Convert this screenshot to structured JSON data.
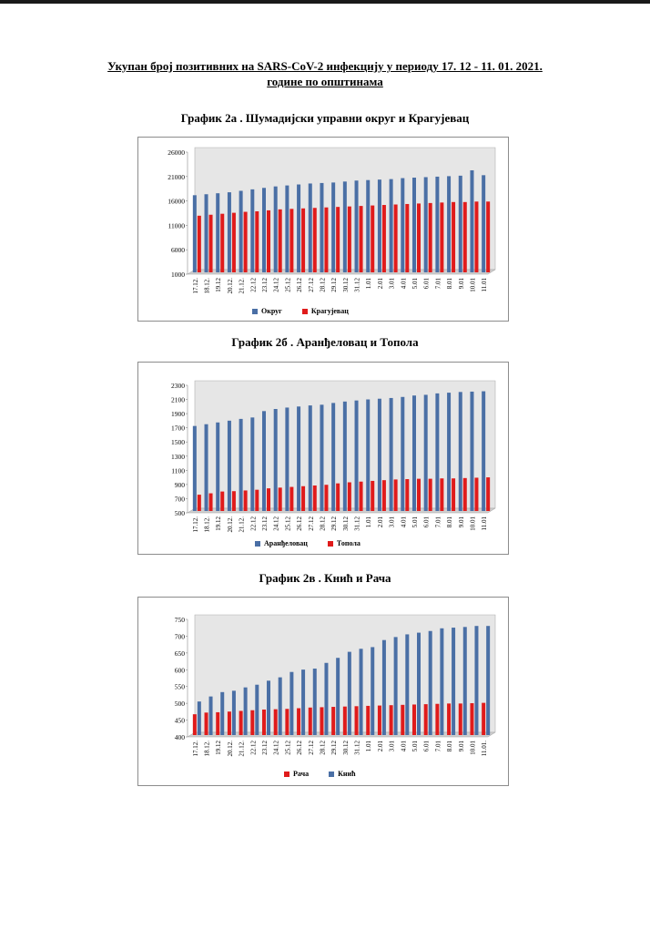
{
  "page": {
    "title_line1": "Укупан број позитивних на SARS-CoV-2 инфекцију у периоду 17. 12 - 11. 01. 2021.",
    "title_line2": "године по општинама"
  },
  "colors": {
    "blue": "#4a6fa5",
    "red": "#e01b1b",
    "plot_bg": "#e6e6e6"
  },
  "chart_data": [
    {
      "type": "bar",
      "title": "График 2а . Шумадијски управни округ и Крагујевац",
      "categories": [
        "17.12.",
        "18.12.",
        "19.12",
        "20.12.",
        "21.12.",
        "22.12",
        "23.12",
        "24.12",
        "25.12",
        "26.12",
        "27.12",
        "28.12",
        "29.12",
        "30.12",
        "31.12",
        "1.01",
        "2.01",
        "3.01",
        "4.01",
        "5.01",
        "6.01",
        "7.01",
        "8.01",
        "9.01",
        "10.01",
        "11.01"
      ],
      "yticks": [
        "26000",
        "21000",
        "16000",
        "11000",
        "6000",
        "1000"
      ],
      "ylim": [
        1000,
        26000
      ],
      "series": [
        {
          "name": "Округ",
          "color": "blue",
          "values": [
            16800,
            17000,
            17200,
            17400,
            17700,
            18000,
            18300,
            18600,
            18800,
            19000,
            19200,
            19300,
            19400,
            19600,
            19800,
            19900,
            20000,
            20100,
            20300,
            20400,
            20500,
            20600,
            20700,
            20800,
            21900,
            20900
          ]
        },
        {
          "name": "Крагујевац",
          "color": "red",
          "values": [
            12600,
            12800,
            13000,
            13200,
            13400,
            13500,
            13700,
            13900,
            14000,
            14100,
            14200,
            14300,
            14400,
            14500,
            14600,
            14700,
            14800,
            14900,
            15000,
            15100,
            15200,
            15300,
            15400,
            15400,
            15500,
            15500
          ]
        }
      ]
    },
    {
      "type": "bar",
      "title": "График 2б . Аранђеловац и Топола",
      "categories": [
        "17.12.",
        "18.12.",
        "19.12",
        "20.12.",
        "21.12.",
        "22.12",
        "23.12",
        "24.12",
        "25.12",
        "26.12",
        "27.12",
        "28.12",
        "29.12",
        "30.12",
        "31.12",
        "1.01",
        "2.01",
        "3.01",
        "4.01",
        "5.01",
        "6.01",
        "7.01",
        "8.01",
        "9.01",
        "10.01",
        "11.01"
      ],
      "yticks": [
        "2300",
        "2100",
        "1900",
        "1700",
        "1500",
        "1300",
        "1100",
        "900",
        "700",
        "500"
      ],
      "ylim": [
        500,
        2300
      ],
      "series": [
        {
          "name": "Аранђеловац",
          "color": "blue",
          "values": [
            1700,
            1725,
            1750,
            1775,
            1800,
            1820,
            1910,
            1940,
            1960,
            1975,
            1990,
            2000,
            2025,
            2045,
            2060,
            2075,
            2085,
            2095,
            2110,
            2130,
            2140,
            2160,
            2170,
            2180,
            2185,
            2190
          ]
        },
        {
          "name": "Топола",
          "color": "red",
          "values": [
            730,
            750,
            775,
            780,
            790,
            800,
            820,
            830,
            840,
            850,
            860,
            870,
            890,
            905,
            915,
            925,
            935,
            945,
            950,
            955,
            955,
            960,
            960,
            965,
            970,
            975
          ]
        }
      ]
    },
    {
      "type": "bar",
      "title": "График 2в . Кнић и Рача",
      "categories": [
        "17.12.",
        "18.12.",
        "19.12",
        "20.12.",
        "21.12.",
        "22.12",
        "23.12",
        "24.12",
        "25.12",
        "26.12",
        "27.12",
        "28.12",
        "29.12",
        "30.12",
        "31.12",
        "1.01",
        "2.01",
        "3.01",
        "4.01",
        "5.01",
        "6.01",
        "7.01",
        "8.01",
        "9.01",
        "10.01",
        "11.01."
      ],
      "yticks": [
        "750",
        "700",
        "650",
        "600",
        "550",
        "500",
        "450",
        "400"
      ],
      "ylim": [
        400,
        750
      ],
      "series": [
        {
          "name": "Рача",
          "color": "red",
          "values": [
            462,
            467,
            468,
            470,
            472,
            474,
            476,
            477,
            478,
            480,
            482,
            483,
            484,
            485,
            486,
            487,
            488,
            489,
            490,
            491,
            492,
            493,
            494,
            494,
            495,
            496
          ]
        },
        {
          "name": "Кнић",
          "color": "blue",
          "values": [
            500,
            515,
            528,
            532,
            542,
            550,
            562,
            572,
            588,
            595,
            598,
            615,
            630,
            648,
            657,
            662,
            683,
            692,
            700,
            705,
            710,
            718,
            720,
            722,
            725,
            725
          ]
        }
      ]
    }
  ]
}
